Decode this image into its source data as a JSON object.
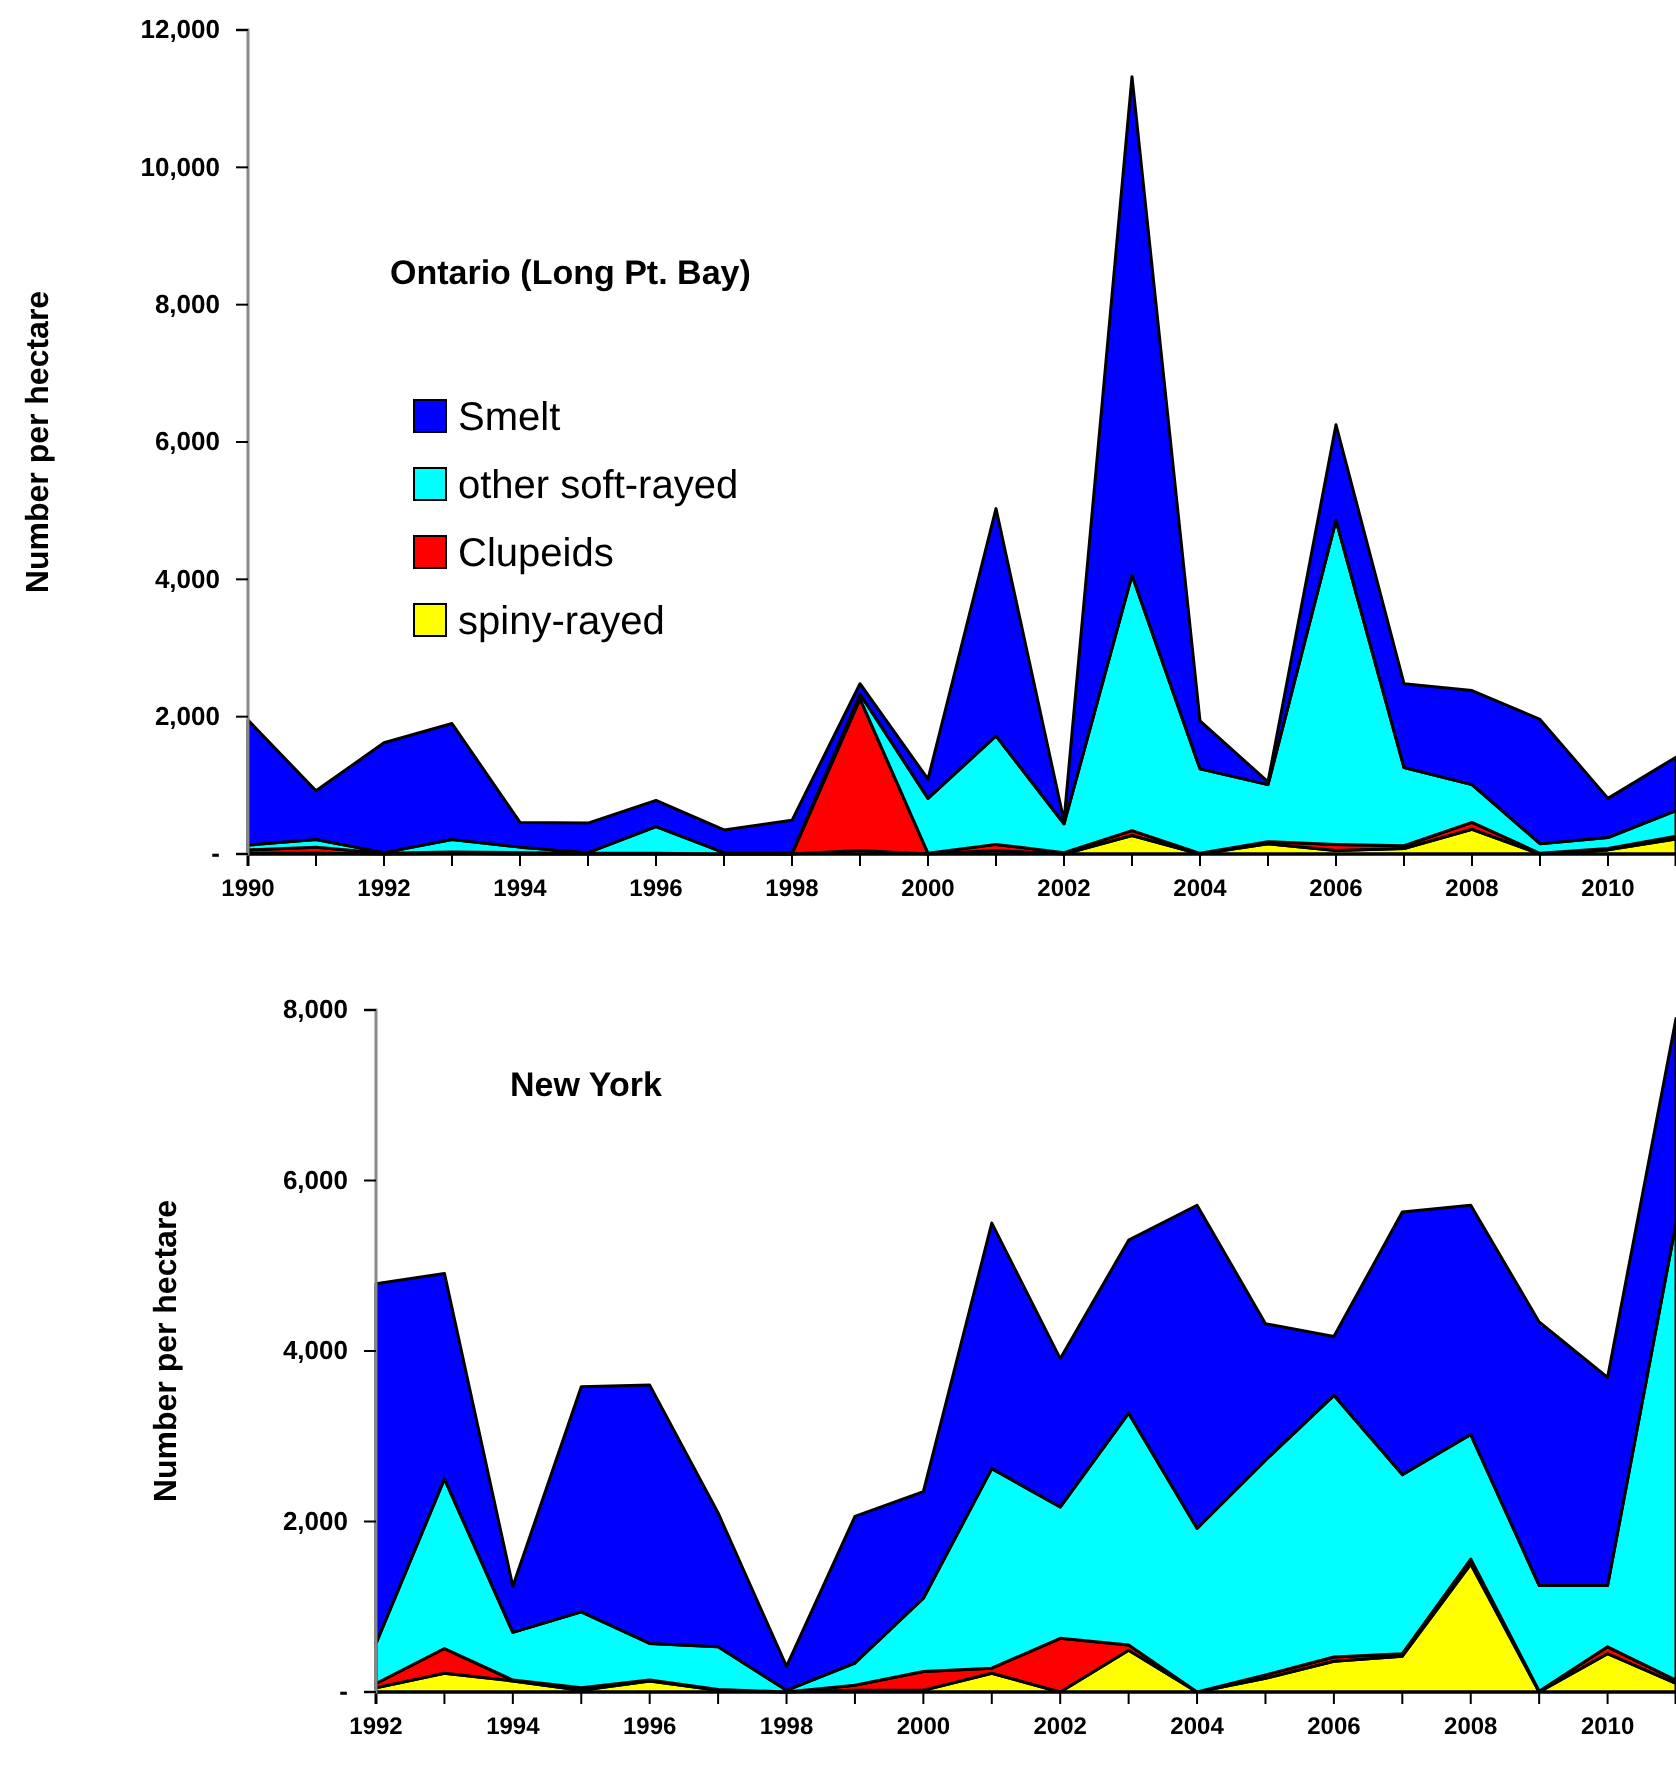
{
  "chart_data": [
    {
      "type": "area",
      "stacked": true,
      "title": "Ontario (Long Pt. Bay)",
      "ylabel": "Number per hectare",
      "legend": "left",
      "x": [
        1990,
        1991,
        1992,
        1993,
        1994,
        1995,
        1996,
        1997,
        1998,
        1999,
        2000,
        2001,
        2002,
        2003,
        2004,
        2005,
        2006,
        2007,
        2008,
        2009,
        2010,
        2011
      ],
      "xlim": [
        1990,
        2011
      ],
      "xticks": [
        1990,
        {
          "value": 1991,
          "label": null
        },
        1992,
        {
          "value": 1993,
          "label": null
        },
        1994,
        {
          "value": 1995,
          "label": null
        },
        1996,
        {
          "value": 1997,
          "label": null
        },
        1998,
        {
          "value": 1999,
          "label": null
        },
        2000,
        {
          "value": 2001,
          "label": null
        },
        2002,
        {
          "value": 2003,
          "label": null
        },
        2004,
        {
          "value": 2005,
          "label": null
        },
        2006,
        {
          "value": 2007,
          "label": null
        },
        2008,
        {
          "value": 2009,
          "label": null
        },
        2010,
        {
          "value": 2011,
          "label": null
        }
      ],
      "ylim": [
        0,
        12000
      ],
      "yticks": [
        {
          "value": 0,
          "label": "-"
        },
        {
          "value": 2000,
          "label": "2,000"
        },
        {
          "value": 4000,
          "label": "4,000"
        },
        {
          "value": 6000,
          "label": "6,000"
        },
        {
          "value": 8000,
          "label": "8,000"
        },
        {
          "value": 10000,
          "label": "10,000"
        },
        {
          "value": 12000,
          "label": "12,000"
        }
      ],
      "series": [
        {
          "name": "spiny-rayed",
          "color": "#ffff00",
          "values": [
            10,
            10,
            0,
            10,
            0,
            0,
            0,
            0,
            0,
            50,
            0,
            50,
            0,
            270,
            0,
            150,
            50,
            80,
            360,
            0,
            60,
            220
          ]
        },
        {
          "name": "Clupeids",
          "color": "#ff0000",
          "values": [
            50,
            90,
            10,
            20,
            20,
            10,
            10,
            0,
            0,
            2210,
            10,
            90,
            20,
            70,
            10,
            30,
            90,
            40,
            100,
            10,
            20,
            40
          ]
        },
        {
          "name": "other soft-rayed",
          "color": "#00ffff",
          "values": [
            70,
            110,
            10,
            180,
            80,
            10,
            390,
            20,
            10,
            70,
            800,
            1580,
            420,
            3720,
            1230,
            830,
            4720,
            1140,
            550,
            140,
            160,
            370
          ]
        },
        {
          "name": "Smelt",
          "color": "#0000ff",
          "values": [
            1820,
            710,
            1600,
            1690,
            360,
            430,
            380,
            330,
            480,
            150,
            280,
            3310,
            40,
            7260,
            700,
            40,
            1390,
            1220,
            1370,
            1810,
            570,
            780
          ]
        }
      ]
    },
    {
      "type": "area",
      "stacked": true,
      "title": "New York",
      "ylabel": "Number per hectare",
      "x": [
        1992,
        1993,
        1994,
        1995,
        1996,
        1997,
        1998,
        1999,
        2000,
        2001,
        2002,
        2003,
        2004,
        2005,
        2006,
        2007,
        2008,
        2009,
        2010,
        2011
      ],
      "xlim": [
        1992,
        2011
      ],
      "xticks": [
        1992,
        {
          "value": 1993,
          "label": null
        },
        1994,
        {
          "value": 1995,
          "label": null
        },
        1996,
        {
          "value": 1997,
          "label": null
        },
        1998,
        {
          "value": 1999,
          "label": null
        },
        2000,
        {
          "value": 2001,
          "label": null
        },
        2002,
        {
          "value": 2003,
          "label": null
        },
        2004,
        {
          "value": 2005,
          "label": null
        },
        2006,
        {
          "value": 2007,
          "label": null
        },
        2008,
        {
          "value": 2009,
          "label": null
        },
        2010,
        {
          "value": 2011,
          "label": null
        }
      ],
      "ylim": [
        0,
        8000
      ],
      "yticks": [
        {
          "value": 0,
          "label": "-"
        },
        {
          "value": 2000,
          "label": "2,000"
        },
        {
          "value": 4000,
          "label": "4,000"
        },
        {
          "value": 6000,
          "label": "6,000"
        },
        {
          "value": 8000,
          "label": "8,000"
        }
      ],
      "series": [
        {
          "color": "#ffff00",
          "values": [
            50,
            220,
            130,
            20,
            130,
            20,
            0,
            20,
            20,
            220,
            0,
            490,
            0,
            160,
            360,
            420,
            1500,
            0,
            450,
            100
          ]
        },
        {
          "color": "#ff0000",
          "values": [
            50,
            290,
            10,
            30,
            10,
            10,
            0,
            60,
            220,
            60,
            630,
            60,
            0,
            40,
            50,
            30,
            60,
            10,
            80,
            40
          ]
        },
        {
          "color": "#00ffff",
          "values": [
            470,
            1990,
            560,
            890,
            430,
            500,
            20,
            260,
            860,
            2340,
            1540,
            2720,
            1920,
            2520,
            3070,
            2100,
            1460,
            1240,
            720,
            5360
          ]
        },
        {
          "color": "#0000ff",
          "values": [
            4220,
            2410,
            540,
            2640,
            3030,
            1570,
            280,
            1720,
            1250,
            2880,
            1740,
            2030,
            3790,
            1600,
            690,
            3080,
            2690,
            3090,
            2440,
            2400
          ]
        }
      ]
    }
  ]
}
